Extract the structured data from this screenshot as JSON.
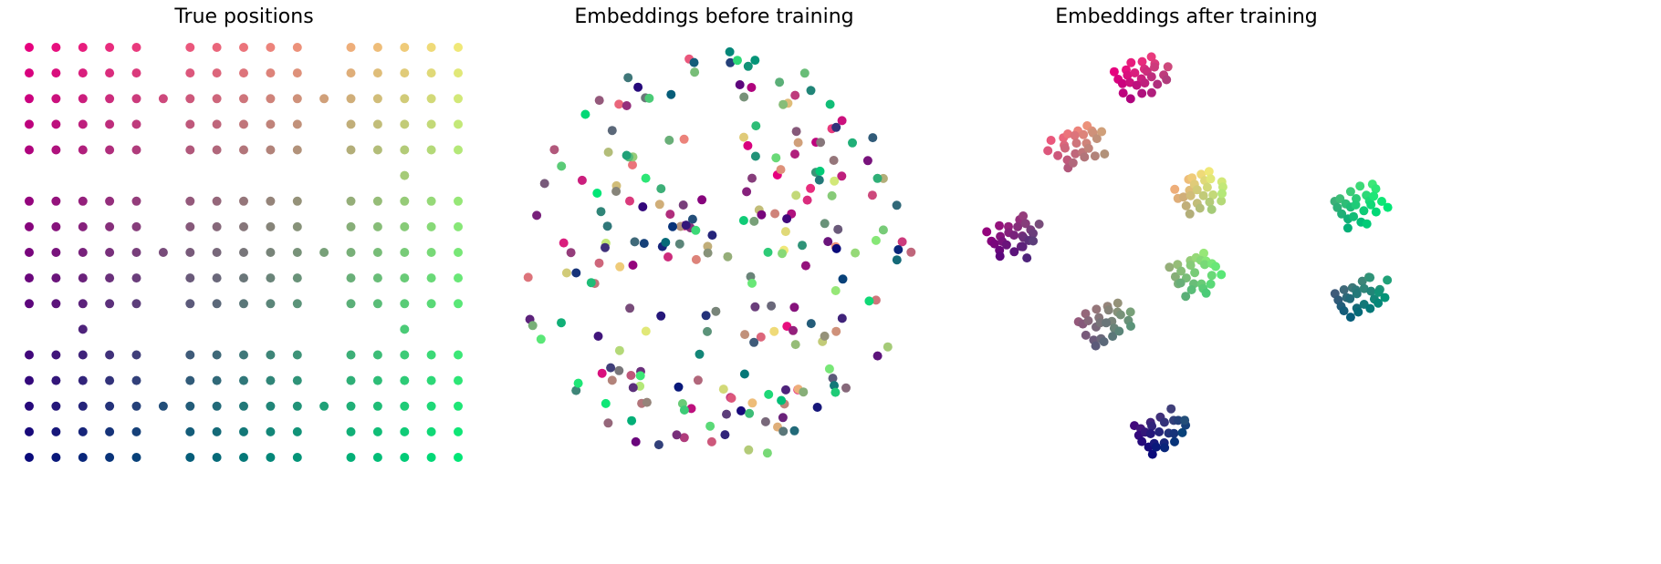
{
  "titles": [
    "True positions",
    "Embeddings before training",
    "Embeddings after training"
  ],
  "chart_data": [
    {
      "type": "scatter",
      "title": "True positions",
      "axes": "off",
      "grid": false,
      "description_of_values": "3x3 grid of 5x5 point blocks with connector points between blocks",
      "block_x_starts": [
        0,
        6,
        12
      ],
      "block_y_starts": [
        0,
        6,
        12
      ],
      "block_size": 5,
      "connectors": [
        [
          5,
          2
        ],
        [
          11,
          2
        ],
        [
          5,
          8
        ],
        [
          11,
          8
        ],
        [
          5,
          14
        ],
        [
          11,
          14
        ],
        [
          14,
          5
        ],
        [
          14,
          11
        ],
        [
          2,
          11
        ]
      ],
      "xlim": [
        -0.5,
        16.5
      ],
      "ylim": [
        -0.5,
        16.5
      ],
      "color_scheme": {
        "top_left": "#e6007e",
        "top_right": "#f0e878",
        "bottom_left": "#0a0a7a",
        "bottom_right": "#00e676"
      }
    },
    {
      "type": "scatter",
      "title": "Embeddings before training",
      "axes": "off",
      "grid": false,
      "distribution": "random cloud",
      "n_points": 234
    },
    {
      "type": "scatter",
      "title": "Embeddings after training",
      "axes": "off",
      "grid": false,
      "clusters": [
        {
          "block": [
            0,
            0
          ],
          "center": [
            1250,
            85
          ]
        },
        {
          "block": [
            0,
            1
          ],
          "center": [
            1180,
            160
          ]
        },
        {
          "block": [
            0,
            2
          ],
          "center": [
            1315,
            210
          ]
        },
        {
          "block": [
            1,
            0
          ],
          "center": [
            1110,
            260
          ]
        },
        {
          "block": [
            1,
            1
          ],
          "center": [
            1210,
            355
          ]
        },
        {
          "block": [
            1,
            2
          ],
          "center": [
            1310,
            300
          ]
        },
        {
          "block": [
            2,
            0
          ],
          "center": [
            1270,
            475
          ]
        },
        {
          "block": [
            2,
            1
          ],
          "center": [
            1490,
            325
          ]
        },
        {
          "block": [
            2,
            2
          ],
          "center": [
            1490,
            225
          ]
        }
      ]
    }
  ]
}
